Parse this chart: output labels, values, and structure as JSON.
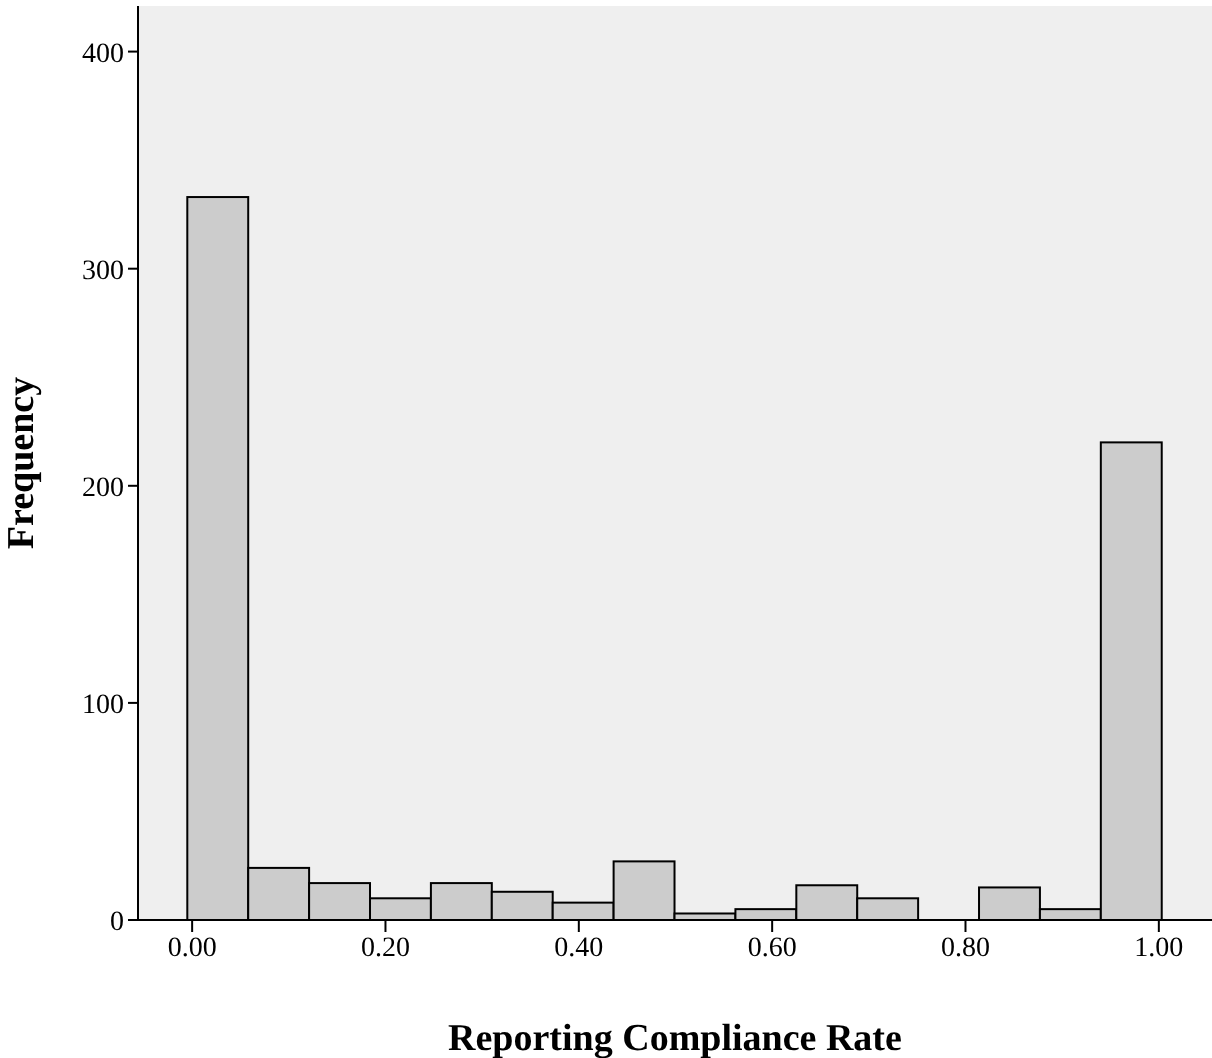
{
  "chart_data": {
    "type": "histogram",
    "xlabel": "Reporting Compliance Rate",
    "ylabel": "Frequency",
    "bins": [
      -0.005,
      0.058,
      0.121,
      0.184,
      0.247,
      0.31,
      0.373,
      0.436,
      0.499,
      0.562,
      0.625,
      0.688,
      0.751,
      0.814,
      0.877,
      0.94,
      1.003
    ],
    "values": [
      333,
      24,
      17,
      10,
      17,
      13,
      8,
      27,
      3,
      5,
      16,
      10,
      0,
      15,
      5,
      220
    ],
    "color": "#cccccc",
    "xlim": [
      -0.056,
      1.055
    ],
    "ylim": [
      0,
      421
    ],
    "xticks": [
      {
        "value": 0,
        "label": "0.00"
      },
      {
        "value": 0.2,
        "label": "0.20"
      },
      {
        "value": 0.4,
        "label": "0.40"
      },
      {
        "value": 0.6,
        "label": "0.60"
      },
      {
        "value": 0.8,
        "label": "0.80"
      },
      {
        "value": 1,
        "label": "1.00"
      }
    ],
    "yticks": [
      0,
      100,
      200,
      300,
      400
    ],
    "grid": false,
    "legend": false
  }
}
